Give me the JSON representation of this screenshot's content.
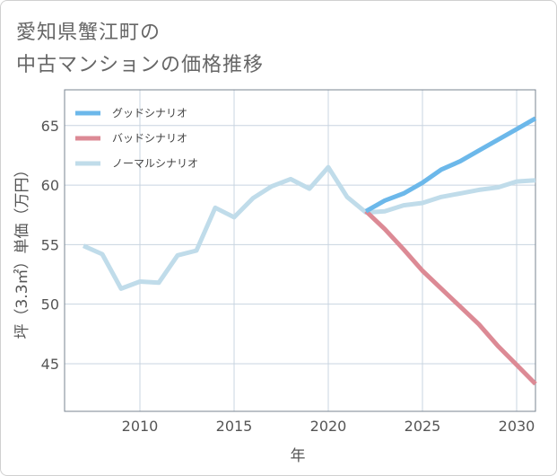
{
  "title": {
    "line1": "愛知県蟹江町の",
    "line2": "中古マンションの価格推移"
  },
  "chart_data": {
    "type": "line",
    "xlabel": "年",
    "ylabel": "坪（3.3㎡）単価（万円）",
    "xlim": [
      2006,
      2031
    ],
    "ylim": [
      41,
      68
    ],
    "x_ticks": [
      2010,
      2015,
      2020,
      2025,
      2030
    ],
    "y_ticks": [
      45,
      50,
      55,
      60,
      65
    ],
    "grid": true,
    "legend_position": "top-left",
    "series": [
      {
        "name": "グッドシナリオ",
        "color": "#6cb8ea",
        "x": [
          2022,
          2023,
          2024,
          2025,
          2026,
          2027,
          2028,
          2029,
          2030,
          2031
        ],
        "values": [
          57.8,
          58.7,
          59.3,
          60.2,
          61.3,
          62.0,
          62.9,
          63.8,
          64.7,
          65.6
        ]
      },
      {
        "name": "バッドシナリオ",
        "color": "#dc8a95",
        "x": [
          2022,
          2023,
          2024,
          2025,
          2026,
          2027,
          2028,
          2029,
          2030,
          2031
        ],
        "values": [
          57.8,
          56.3,
          54.6,
          52.8,
          51.3,
          49.8,
          48.3,
          46.5,
          44.9,
          43.3
        ]
      },
      {
        "name": "ノーマルシナリオ",
        "color": "#c0dcea",
        "x": [
          2007,
          2008,
          2009,
          2010,
          2011,
          2012,
          2013,
          2014,
          2015,
          2016,
          2017,
          2018,
          2019,
          2020,
          2021,
          2022,
          2023,
          2024,
          2025,
          2026,
          2027,
          2028,
          2029,
          2030,
          2031
        ],
        "values": [
          54.9,
          54.2,
          51.3,
          51.9,
          51.8,
          54.1,
          54.5,
          58.1,
          57.3,
          58.9,
          59.9,
          60.5,
          59.7,
          61.5,
          59.0,
          57.7,
          57.8,
          58.3,
          58.5,
          59.0,
          59.3,
          59.6,
          59.8,
          60.3,
          60.4
        ]
      }
    ]
  }
}
